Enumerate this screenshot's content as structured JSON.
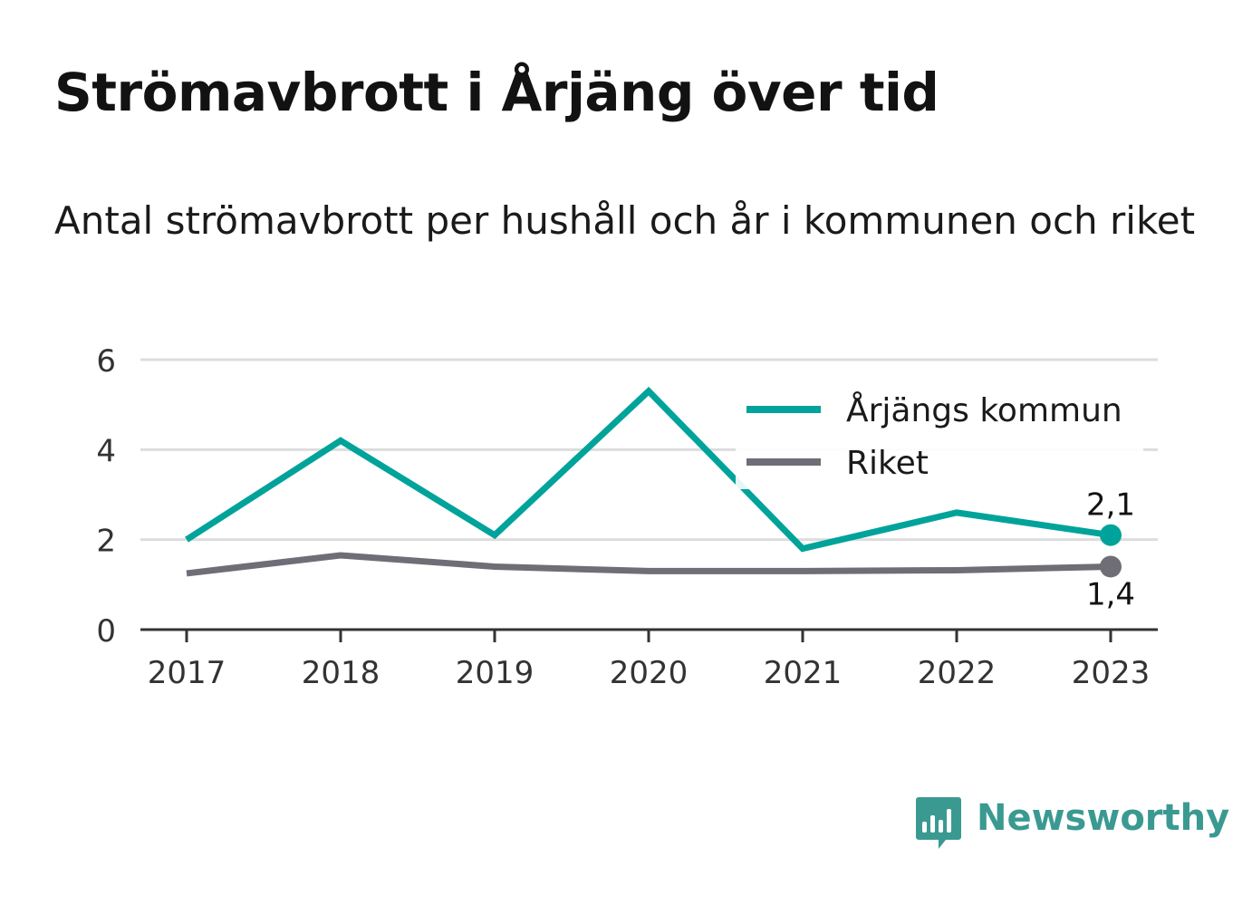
{
  "header": {
    "title": "Strömavbrott i Årjäng över tid",
    "subtitle": "Antal strömavbrott per hushåll och år i kommunen och riket"
  },
  "brand": {
    "name": "Newsworthy",
    "icon": "bar-chart-speech-bubble-icon",
    "color": "#3a9a92"
  },
  "chart_data": {
    "type": "line",
    "title": "Strömavbrott i Årjäng över tid",
    "subtitle": "Antal strömavbrott per hushåll och år i kommunen och riket",
    "xlabel": "",
    "ylabel": "",
    "categories": [
      "2017",
      "2018",
      "2019",
      "2020",
      "2021",
      "2022",
      "2023"
    ],
    "ylim": [
      0,
      6
    ],
    "yticks": [
      "0",
      "2",
      "4",
      "6"
    ],
    "grid": true,
    "legend_position": "top-right",
    "series": [
      {
        "name": "Årjängs kommun",
        "color": "#00a39a",
        "values": [
          2.0,
          4.2,
          2.1,
          5.3,
          1.8,
          2.6,
          2.1
        ],
        "end_label": "2,1"
      },
      {
        "name": "Riket",
        "color": "#6f6e76",
        "values": [
          1.25,
          1.65,
          1.4,
          1.3,
          1.3,
          1.32,
          1.4
        ],
        "end_label": "1,4"
      }
    ]
  }
}
